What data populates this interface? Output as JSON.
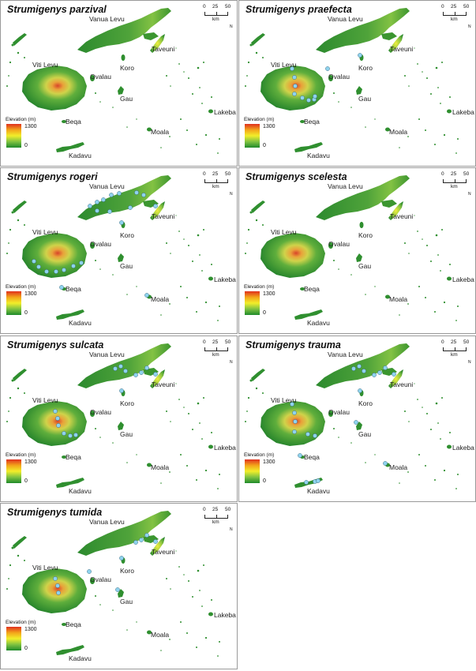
{
  "map_data": {
    "legend": {
      "title": "Elevation (m)",
      "max": "1300",
      "min": "0",
      "colors": [
        "#e0301e",
        "#f3a51a",
        "#f2ee2a",
        "#7fc241",
        "#1f8a2a"
      ]
    },
    "scale": {
      "ticks": [
        "0",
        "25",
        "50"
      ],
      "unit": "km"
    },
    "north": "N",
    "place_labels": [
      "Vanua Levu",
      "Taveuni",
      "Viti Levu",
      "Ovalau",
      "Koro",
      "Gau",
      "Lakeba",
      "Beqa",
      "Moala",
      "Kadavu"
    ],
    "marker_color": "#8fd3ee",
    "land_color": "#2f8f2f",
    "panels": [
      {
        "title": "Strumigenys parzival",
        "records": []
      },
      {
        "title": "Strumigenys praefecta",
        "records": [
          "Viti Levu (central highlands)",
          "Viti Levu (south-east)",
          "Viti Levu (east coast)",
          "Ovalau",
          "Koro"
        ]
      },
      {
        "title": "Strumigenys rogeri",
        "records": [
          "Vanua Levu (north-west)",
          "Vanua Levu (north coast)",
          "Vanua Levu (south coast)",
          "Taveuni",
          "Koro",
          "Viti Levu (west)",
          "Viti Levu (south coast)",
          "Beqa",
          "Moala"
        ]
      },
      {
        "title": "Strumigenys scelesta",
        "records": []
      },
      {
        "title": "Strumigenys sulcata",
        "records": [
          "Vanua Levu (central)",
          "Vanua Levu (east)",
          "Taveuni",
          "Koro",
          "Viti Levu (central)",
          "Viti Levu (south-east)"
        ]
      },
      {
        "title": "Strumigenys trauma",
        "records": [
          "Vanua Levu (central)",
          "Vanua Levu (east)",
          "Taveuni",
          "Koro",
          "Viti Levu (central highlands)",
          "Viti Levu (east)",
          "Gau",
          "Beqa",
          "Moala",
          "Kadavu"
        ]
      },
      {
        "title": "Strumigenys tumida",
        "records": [
          "Vanua Levu (east)",
          "Taveuni",
          "Ovalau",
          "Koro",
          "Viti Levu (central)",
          "Gau"
        ]
      }
    ]
  }
}
